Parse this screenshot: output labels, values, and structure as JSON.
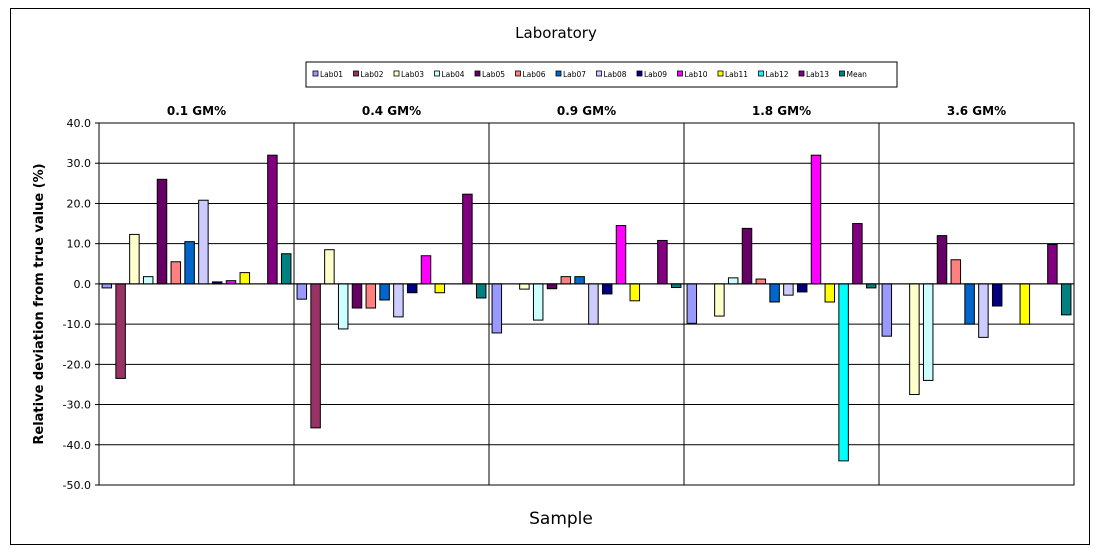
{
  "chart_data": {
    "type": "bar",
    "title": "Laboratory",
    "xlabel": "Sample",
    "ylabel": "Relative deviation from true value (%)",
    "ylim": [
      -50,
      40
    ],
    "yticks": [
      "40.0",
      "30.0",
      "20.0",
      "10.0",
      "0.0",
      "-10.0",
      "-20.0",
      "-30.0",
      "-40.0",
      "-50.0"
    ],
    "grid": true,
    "legend_position": "top",
    "categories": [
      "0.1 GM%",
      "0.4 GM%",
      "0.9 GM%",
      "1.8 GM%",
      "3.6 GM%"
    ],
    "series": [
      {
        "name": "Lab01",
        "color": "#9999FF",
        "values": [
          -1.0,
          -3.8,
          -12.2,
          -9.8,
          -13.0
        ]
      },
      {
        "name": "Lab02",
        "color": "#993366",
        "values": [
          -23.5,
          -35.8,
          null,
          null,
          null
        ]
      },
      {
        "name": "Lab03",
        "color": "#FFFFCC",
        "values": [
          12.3,
          8.5,
          -1.3,
          -8.0,
          -27.5
        ]
      },
      {
        "name": "Lab04",
        "color": "#CCFFFF",
        "values": [
          1.8,
          -11.2,
          -9.0,
          1.5,
          -24.0
        ]
      },
      {
        "name": "Lab05",
        "color": "#660066",
        "values": [
          26.0,
          -6.0,
          -1.2,
          13.8,
          12.0
        ]
      },
      {
        "name": "Lab06",
        "color": "#FF8080",
        "values": [
          5.5,
          -6.0,
          1.8,
          1.2,
          6.0
        ]
      },
      {
        "name": "Lab07",
        "color": "#0066CC",
        "values": [
          10.5,
          -4.0,
          1.8,
          -4.5,
          -10.0
        ]
      },
      {
        "name": "Lab08",
        "color": "#CCCCFF",
        "values": [
          20.8,
          -8.2,
          -10.0,
          -2.8,
          -13.3
        ]
      },
      {
        "name": "Lab09",
        "color": "#000080",
        "values": [
          0.5,
          -2.2,
          -2.5,
          -2.0,
          -5.5
        ]
      },
      {
        "name": "Lab10",
        "color": "#FF00FF",
        "values": [
          0.8,
          7.0,
          14.5,
          32.0,
          null
        ]
      },
      {
        "name": "Lab11",
        "color": "#FFFF00",
        "values": [
          2.8,
          -2.2,
          -4.2,
          -4.5,
          -10.0
        ]
      },
      {
        "name": "Lab12",
        "color": "#00FFFF",
        "values": [
          null,
          null,
          null,
          -44.0,
          null
        ]
      },
      {
        "name": "Lab13",
        "color": "#800080",
        "values": [
          32.0,
          22.3,
          10.8,
          15.0,
          9.8
        ]
      },
      {
        "name": "Mean",
        "color": "#008080",
        "values": [
          7.5,
          -3.5,
          -0.9,
          -1.0,
          -7.7
        ]
      }
    ]
  }
}
